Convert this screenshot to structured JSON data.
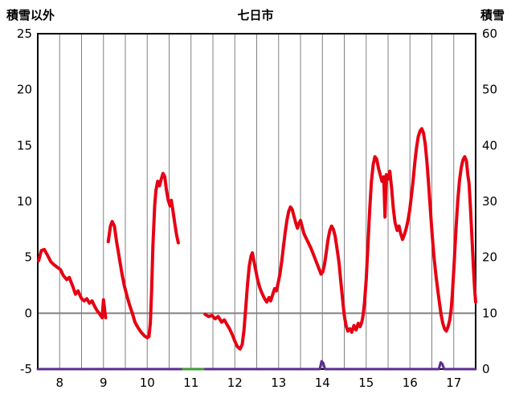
{
  "chart_data": {
    "type": "line",
    "title": "七日市",
    "left_axis_title": "積雪以外",
    "right_axis_title": "積雪",
    "x_range": [
      7.5,
      17.5
    ],
    "x_ticks": [
      8,
      9,
      10,
      11,
      12,
      13,
      14,
      15,
      16,
      17
    ],
    "left_axis": {
      "min": -5,
      "max": 25,
      "ticks": [
        25,
        20,
        15,
        10,
        5,
        0,
        -5
      ]
    },
    "right_axis": {
      "min": 0,
      "max": 60,
      "ticks": [
        60,
        50,
        40,
        30,
        20,
        10,
        0
      ]
    },
    "grid": {
      "x_step": 0.5,
      "color": "#808080",
      "zero_line_color": "#808080",
      "border_color": "#000000"
    },
    "series": [
      {
        "id": "snow-depth",
        "name": "積雪",
        "axis": "right",
        "color": "#5b2d8f",
        "width": 3,
        "points": [
          [
            7.5,
            0
          ],
          [
            13.94,
            0
          ],
          [
            13.98,
            1.4
          ],
          [
            14.02,
            1.1
          ],
          [
            14.06,
            0
          ],
          [
            16.66,
            0
          ],
          [
            16.7,
            1.2
          ],
          [
            16.74,
            0.9
          ],
          [
            16.78,
            0
          ],
          [
            17.5,
            0
          ]
        ]
      },
      {
        "id": "marker",
        "name": "marker-segment",
        "axis": "right",
        "color": "#3d9b35",
        "width": 3,
        "points": [
          [
            10.82,
            0
          ],
          [
            11.28,
            0
          ]
        ]
      },
      {
        "id": "temperature",
        "name": "積雪以外",
        "axis": "left",
        "color": "#e60012",
        "width": 4,
        "points": [
          [
            7.52,
            4.7
          ],
          [
            7.58,
            5.6
          ],
          [
            7.65,
            5.7
          ],
          [
            7.72,
            5.2
          ],
          [
            7.8,
            4.6
          ],
          [
            7.88,
            4.3
          ],
          [
            7.95,
            4.1
          ],
          [
            8.02,
            3.9
          ],
          [
            8.08,
            3.4
          ],
          [
            8.16,
            3.0
          ],
          [
            8.22,
            3.2
          ],
          [
            8.3,
            2.4
          ],
          [
            8.36,
            1.7
          ],
          [
            8.42,
            2.0
          ],
          [
            8.5,
            1.3
          ],
          [
            8.56,
            1.1
          ],
          [
            8.62,
            1.3
          ],
          [
            8.68,
            0.9
          ],
          [
            8.74,
            1.1
          ],
          [
            8.8,
            0.6
          ],
          [
            8.86,
            0.2
          ],
          [
            8.92,
            -0.1
          ],
          [
            8.97,
            -0.4
          ],
          [
            9.0,
            1.2
          ],
          [
            9.03,
            0.2
          ],
          [
            9.05,
            -0.4
          ],
          null,
          [
            9.11,
            6.4
          ],
          [
            9.16,
            7.8
          ],
          [
            9.2,
            8.2
          ],
          [
            9.25,
            7.8
          ],
          [
            9.3,
            6.4
          ],
          [
            9.36,
            5.0
          ],
          [
            9.42,
            3.6
          ],
          [
            9.48,
            2.4
          ],
          [
            9.54,
            1.5
          ],
          [
            9.6,
            0.7
          ],
          [
            9.66,
            0.0
          ],
          [
            9.72,
            -0.8
          ],
          [
            9.79,
            -1.3
          ],
          [
            9.86,
            -1.7
          ],
          [
            9.93,
            -2.0
          ],
          [
            10.0,
            -2.2
          ],
          [
            10.04,
            -2.1
          ],
          [
            10.07,
            -0.9
          ],
          [
            10.1,
            2.0
          ],
          [
            10.13,
            6.0
          ],
          [
            10.17,
            9.6
          ],
          [
            10.2,
            11.0
          ],
          [
            10.24,
            11.8
          ],
          [
            10.28,
            11.4
          ],
          [
            10.32,
            12.0
          ],
          [
            10.36,
            12.5
          ],
          [
            10.4,
            12.2
          ],
          [
            10.44,
            11.0
          ],
          [
            10.48,
            10.1
          ],
          [
            10.52,
            9.6
          ],
          [
            10.55,
            10.1
          ],
          [
            10.59,
            9.1
          ],
          [
            10.63,
            8.0
          ],
          [
            10.67,
            7.0
          ],
          [
            10.71,
            6.3
          ],
          null,
          [
            11.32,
            -0.1
          ],
          [
            11.4,
            -0.3
          ],
          [
            11.48,
            -0.2
          ],
          [
            11.55,
            -0.5
          ],
          [
            11.62,
            -0.3
          ],
          [
            11.7,
            -0.8
          ],
          [
            11.76,
            -0.6
          ],
          [
            11.82,
            -1.0
          ],
          [
            11.88,
            -1.4
          ],
          [
            11.94,
            -1.9
          ],
          [
            12.0,
            -2.5
          ],
          [
            12.06,
            -3.0
          ],
          [
            12.12,
            -3.2
          ],
          [
            12.17,
            -2.8
          ],
          [
            12.21,
            -1.5
          ],
          [
            12.25,
            0.5
          ],
          [
            12.29,
            2.6
          ],
          [
            12.33,
            4.2
          ],
          [
            12.37,
            5.1
          ],
          [
            12.4,
            5.4
          ],
          [
            12.44,
            4.6
          ],
          [
            12.48,
            3.8
          ],
          [
            12.52,
            3.0
          ],
          [
            12.57,
            2.3
          ],
          [
            12.62,
            1.8
          ],
          [
            12.68,
            1.3
          ],
          [
            12.73,
            1.0
          ],
          [
            12.78,
            1.4
          ],
          [
            12.82,
            1.1
          ],
          [
            12.86,
            1.6
          ],
          [
            12.91,
            2.2
          ],
          [
            12.95,
            2.0
          ],
          [
            12.99,
            2.7
          ],
          [
            13.03,
            3.5
          ],
          [
            13.07,
            4.6
          ],
          [
            13.11,
            5.9
          ],
          [
            13.15,
            7.2
          ],
          [
            13.19,
            8.3
          ],
          [
            13.23,
            9.1
          ],
          [
            13.27,
            9.5
          ],
          [
            13.31,
            9.3
          ],
          [
            13.35,
            8.7
          ],
          [
            13.39,
            8.1
          ],
          [
            13.43,
            7.6
          ],
          [
            13.46,
            8.0
          ],
          [
            13.5,
            8.3
          ],
          [
            13.54,
            7.7
          ],
          [
            13.58,
            7.1
          ],
          [
            13.63,
            6.7
          ],
          [
            13.68,
            6.3
          ],
          [
            13.74,
            5.8
          ],
          [
            13.8,
            5.2
          ],
          [
            13.86,
            4.6
          ],
          [
            13.92,
            4.0
          ],
          [
            13.97,
            3.5
          ],
          [
            14.01,
            3.7
          ],
          [
            14.05,
            4.4
          ],
          [
            14.09,
            5.5
          ],
          [
            14.13,
            6.6
          ],
          [
            14.17,
            7.4
          ],
          [
            14.21,
            7.8
          ],
          [
            14.25,
            7.5
          ],
          [
            14.29,
            6.9
          ],
          [
            14.33,
            5.9
          ],
          [
            14.38,
            4.5
          ],
          [
            14.42,
            2.9
          ],
          [
            14.46,
            1.3
          ],
          [
            14.5,
            -0.2
          ],
          [
            14.54,
            -1.1
          ],
          [
            14.58,
            -1.6
          ],
          [
            14.63,
            -1.4
          ],
          [
            14.67,
            -1.7
          ],
          [
            14.72,
            -1.1
          ],
          [
            14.77,
            -1.5
          ],
          [
            14.82,
            -0.9
          ],
          [
            14.86,
            -1.2
          ],
          [
            14.9,
            -0.8
          ],
          [
            14.93,
            -0.2
          ],
          [
            14.96,
            0.9
          ],
          [
            15.0,
            3.0
          ],
          [
            15.04,
            6.0
          ],
          [
            15.08,
            9.2
          ],
          [
            15.12,
            11.8
          ],
          [
            15.16,
            13.3
          ],
          [
            15.2,
            14.0
          ],
          [
            15.24,
            13.8
          ],
          [
            15.28,
            13.0
          ],
          [
            15.32,
            12.4
          ],
          [
            15.36,
            11.8
          ],
          [
            15.4,
            12.2
          ],
          [
            15.43,
            8.6
          ],
          [
            15.46,
            12.4
          ],
          [
            15.5,
            12.0
          ],
          [
            15.54,
            12.7
          ],
          [
            15.58,
            11.2
          ],
          [
            15.62,
            9.4
          ],
          [
            15.66,
            8.1
          ],
          [
            15.71,
            7.4
          ],
          [
            15.75,
            7.8
          ],
          [
            15.79,
            7.1
          ],
          [
            15.83,
            6.6
          ],
          [
            15.87,
            7.0
          ],
          [
            15.91,
            7.5
          ],
          [
            15.95,
            8.2
          ],
          [
            15.99,
            9.1
          ],
          [
            16.03,
            10.4
          ],
          [
            16.07,
            11.8
          ],
          [
            16.11,
            13.4
          ],
          [
            16.15,
            14.8
          ],
          [
            16.19,
            15.8
          ],
          [
            16.23,
            16.3
          ],
          [
            16.27,
            16.5
          ],
          [
            16.31,
            16.1
          ],
          [
            16.35,
            15.1
          ],
          [
            16.39,
            13.4
          ],
          [
            16.43,
            11.3
          ],
          [
            16.47,
            9.0
          ],
          [
            16.51,
            6.9
          ],
          [
            16.55,
            5.0
          ],
          [
            16.59,
            3.5
          ],
          [
            16.63,
            2.2
          ],
          [
            16.67,
            1.0
          ],
          [
            16.71,
            -0.1
          ],
          [
            16.75,
            -0.9
          ],
          [
            16.79,
            -1.4
          ],
          [
            16.83,
            -1.6
          ],
          [
            16.87,
            -1.2
          ],
          [
            16.91,
            -0.6
          ],
          [
            16.94,
            0.3
          ],
          [
            16.97,
            1.8
          ],
          [
            17.01,
            4.5
          ],
          [
            17.05,
            7.5
          ],
          [
            17.09,
            10.0
          ],
          [
            17.13,
            11.8
          ],
          [
            17.17,
            13.0
          ],
          [
            17.21,
            13.7
          ],
          [
            17.25,
            14.0
          ],
          [
            17.29,
            13.6
          ],
          [
            17.32,
            12.4
          ],
          [
            17.35,
            11.6
          ],
          [
            17.38,
            9.5
          ],
          [
            17.42,
            6.5
          ],
          [
            17.45,
            4.0
          ],
          [
            17.48,
            2.0
          ],
          [
            17.5,
            1.0
          ]
        ]
      }
    ]
  }
}
